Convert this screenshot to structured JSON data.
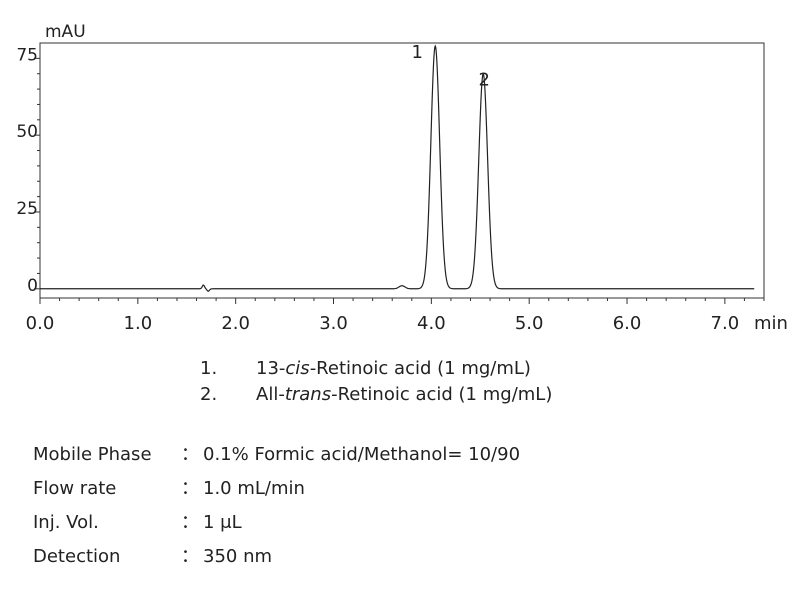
{
  "chart_data": {
    "type": "line",
    "ylabel": "mAU",
    "xunit": "min",
    "xlim": [
      0,
      7.4
    ],
    "ylim": [
      -3,
      80
    ],
    "x_ticks": [
      "0.0",
      "1.0",
      "2.0",
      "3.0",
      "4.0",
      "5.0",
      "6.0",
      "7.0"
    ],
    "y_ticks": [
      "0",
      "25",
      "50",
      "75"
    ],
    "grid": false,
    "baseline": 0,
    "peaks": [
      {
        "label": "1",
        "rt": 4.04,
        "height": 79,
        "width": 0.045
      },
      {
        "label": "2",
        "rt": 4.53,
        "height": 70,
        "width": 0.045
      }
    ],
    "minor_features": [
      {
        "rt": 1.67,
        "height": 1.2,
        "width": 0.012
      },
      {
        "rt": 1.72,
        "height": -0.8,
        "width": 0.012
      },
      {
        "rt": 3.7,
        "height": 1.0,
        "width": 0.03
      }
    ]
  },
  "legend": [
    {
      "num": "1.",
      "pre": "13-",
      "ital": "cis",
      "post": "-Retinoic acid (1 mg/mL)"
    },
    {
      "num": "2.",
      "pre": "All-",
      "ital": "trans",
      "post": "-Retinoic acid (1 mg/mL)"
    }
  ],
  "conditions": [
    {
      "label": "Mobile Phase",
      "colon": "：",
      "value": "0.1% Formic acid/Methanol= 10/90"
    },
    {
      "label": "Flow rate",
      "colon": "：",
      "value": "1.0 mL/min"
    },
    {
      "label": "Inj. Vol.",
      "colon": "：",
      "value": "1 μL"
    },
    {
      "label": "Detection",
      "colon": "：",
      "value": "350 nm"
    }
  ]
}
